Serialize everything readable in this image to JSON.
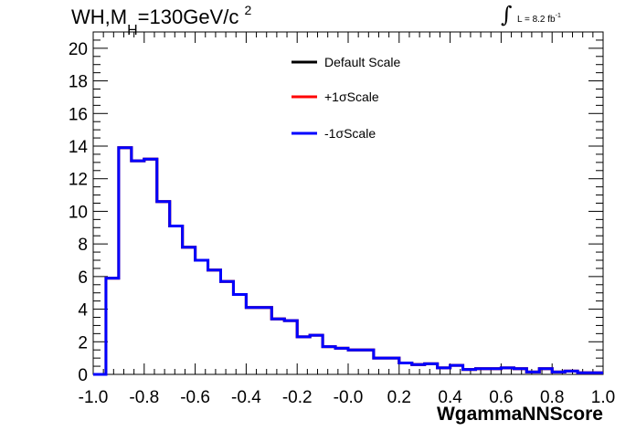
{
  "header": {
    "title_prefix": "WH,M",
    "title_sub": "H",
    "title_suffix": "=130GeV/c",
    "title_sup": "2",
    "lumi_text": "L = 8.2 fb",
    "lumi_sup": "-1"
  },
  "colors": {
    "default": "#000000",
    "plus": "#ff0000",
    "minus": "#0000ff",
    "axis": "#000000",
    "background": "#ffffff"
  },
  "chart_data": {
    "type": "line",
    "title": "WH,MH=130GeV/c2",
    "xlabel": "WgammaNNScore",
    "ylabel": "",
    "xlim": [
      -1.0,
      1.0
    ],
    "ylim": [
      0,
      21
    ],
    "grid": false,
    "legend_position": "top-center",
    "x_tick_labels": [
      "-1.0",
      "-0.8",
      "-0.6",
      "-0.4",
      "-0.2",
      "-0.0",
      "0.2",
      "0.4",
      "0.6",
      "0.8",
      "1.0"
    ],
    "y_tick_labels": [
      "0",
      "2",
      "4",
      "6",
      "8",
      "10",
      "12",
      "14",
      "16",
      "18",
      "20"
    ],
    "bin_edges": [
      -1.0,
      -0.95,
      -0.9,
      -0.85,
      -0.8,
      -0.75,
      -0.7,
      -0.65,
      -0.6,
      -0.55,
      -0.5,
      -0.45,
      -0.4,
      -0.35,
      -0.3,
      -0.25,
      -0.2,
      -0.15,
      -0.1,
      -0.05,
      0.0,
      0.05,
      0.1,
      0.15,
      0.2,
      0.25,
      0.3,
      0.35,
      0.4,
      0.45,
      0.5,
      0.55,
      0.6,
      0.65,
      0.7,
      0.75,
      0.8,
      0.85,
      0.9,
      0.95,
      1.0
    ],
    "series": [
      {
        "name": "Default Scale",
        "values": [
          0,
          5.9,
          13.9,
          13.1,
          13.2,
          10.6,
          9.1,
          7.8,
          7.0,
          6.4,
          5.7,
          4.9,
          4.1,
          4.1,
          3.4,
          3.3,
          2.3,
          2.4,
          1.7,
          1.6,
          1.5,
          1.5,
          1.0,
          1.0,
          0.7,
          0.6,
          0.65,
          0.4,
          0.55,
          0.3,
          0.35,
          0.35,
          0.4,
          0.35,
          0.15,
          0.35,
          0.15,
          0.2,
          0.1,
          0.1
        ]
      },
      {
        "name": "+1σScale",
        "values": [
          0,
          5.9,
          13.9,
          13.1,
          13.2,
          10.6,
          9.1,
          7.8,
          7.0,
          6.4,
          5.7,
          4.9,
          4.1,
          4.1,
          3.4,
          3.3,
          2.3,
          2.4,
          1.7,
          1.6,
          1.5,
          1.5,
          1.0,
          1.0,
          0.7,
          0.6,
          0.65,
          0.4,
          0.55,
          0.3,
          0.35,
          0.35,
          0.4,
          0.35,
          0.15,
          0.35,
          0.15,
          0.2,
          0.1,
          0.1
        ]
      },
      {
        "name": "-1σScale",
        "values": [
          0,
          5.9,
          13.9,
          13.1,
          13.2,
          10.6,
          9.1,
          7.8,
          7.0,
          6.4,
          5.7,
          4.9,
          4.1,
          4.1,
          3.4,
          3.3,
          2.3,
          2.4,
          1.7,
          1.6,
          1.5,
          1.5,
          1.0,
          1.0,
          0.7,
          0.6,
          0.65,
          0.4,
          0.55,
          0.3,
          0.35,
          0.35,
          0.4,
          0.35,
          0.15,
          0.35,
          0.15,
          0.2,
          0.1,
          0.1
        ]
      }
    ]
  }
}
